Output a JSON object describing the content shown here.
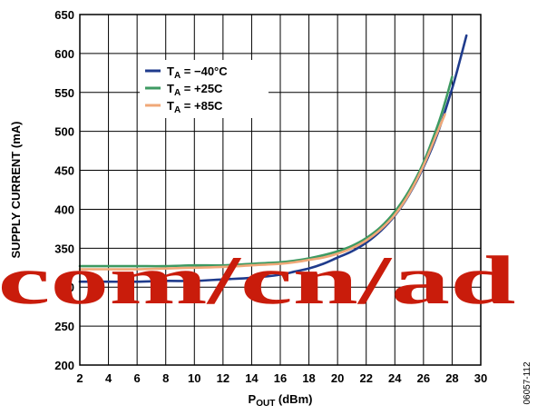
{
  "chart_data": {
    "type": "line",
    "xlabel_main": "P",
    "xlabel_sub": "OUT",
    "xlabel_unit": " (dBm)",
    "ylabel": "SUPPLY CURRENT (mA)",
    "xlim": [
      2,
      30
    ],
    "ylim": [
      200,
      650
    ],
    "xticks": [
      2,
      4,
      6,
      8,
      10,
      12,
      14,
      16,
      18,
      20,
      22,
      24,
      26,
      28,
      30
    ],
    "yticks": [
      200,
      250,
      300,
      350,
      400,
      450,
      500,
      550,
      600,
      650
    ],
    "grid": true,
    "legend_position": "top-left",
    "series": [
      {
        "name_main": "T",
        "name_sub": "A",
        "name_rest": " = −40°C",
        "color": "#1f3b8c",
        "x": [
          2,
          4,
          6,
          8,
          10,
          12,
          14,
          16,
          17,
          18,
          19,
          20,
          21,
          22,
          23,
          24,
          25,
          26,
          27,
          28,
          28.5,
          29
        ],
        "y": [
          307,
          307,
          307,
          308,
          308,
          310,
          312,
          316,
          320,
          324,
          330,
          338,
          346,
          357,
          372,
          392,
          419,
          454,
          498,
          555,
          588,
          623
        ]
      },
      {
        "name_main": "T",
        "name_sub": "A",
        "name_rest": " = +25C",
        "color": "#3e9a62",
        "x": [
          2,
          4,
          6,
          8,
          10,
          12,
          14,
          16,
          17,
          18,
          19,
          20,
          21,
          22,
          23,
          24,
          25,
          26,
          27,
          27.5,
          28
        ],
        "y": [
          327,
          327,
          327,
          327,
          328,
          328,
          330,
          332,
          334,
          337,
          341,
          346,
          353,
          363,
          377,
          397,
          424,
          460,
          508,
          537,
          570
        ]
      },
      {
        "name_main": "T",
        "name_sub": "A",
        "name_rest": " = +85C",
        "color": "#f0a878",
        "x": [
          2,
          4,
          6,
          8,
          10,
          12,
          14,
          16,
          17,
          18,
          19,
          20,
          21,
          22,
          23,
          24,
          25,
          26,
          27,
          27.5
        ],
        "y": [
          323,
          323,
          323,
          324,
          325,
          326,
          328,
          330,
          332,
          335,
          338,
          343,
          350,
          360,
          374,
          393,
          420,
          456,
          500,
          522
        ]
      }
    ]
  },
  "figure_id": "06057-112",
  "watermark": {
    "text": "com/cn/ad",
    "color": "#c91c0b"
  }
}
